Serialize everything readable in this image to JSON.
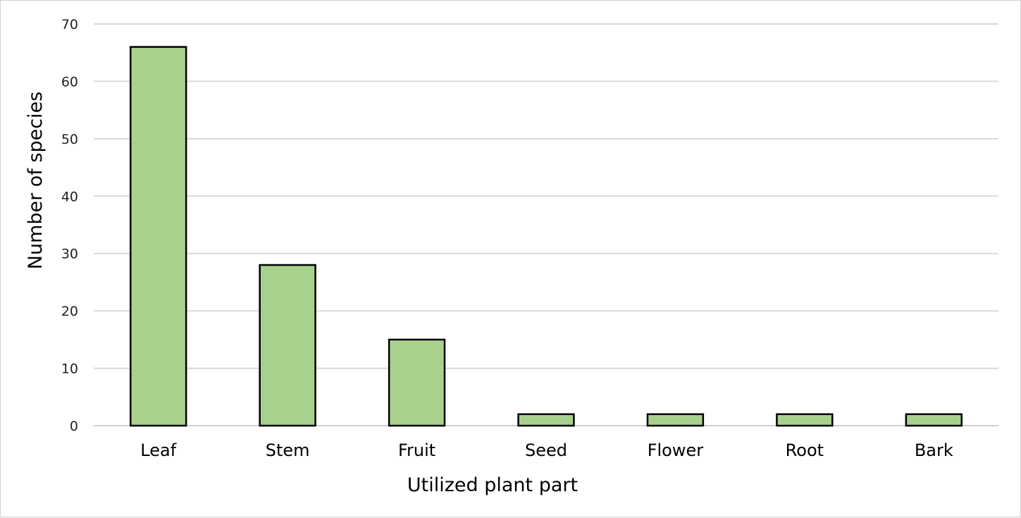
{
  "chart_data": {
    "type": "bar",
    "title": "",
    "xlabel": "Utilized plant part",
    "ylabel": "Number of species",
    "categories": [
      "Leaf",
      "Stem",
      "Fruit",
      "Seed",
      "Flower",
      "Root",
      "Bark"
    ],
    "values": [
      66,
      28,
      15,
      2,
      2,
      2,
      2
    ],
    "ylim": [
      0,
      70
    ],
    "yticks": [
      0,
      10,
      20,
      30,
      40,
      50,
      60,
      70
    ],
    "grid": true,
    "legend": "none",
    "bar_color": "#a9d18e",
    "bar_outline": "#000000"
  }
}
